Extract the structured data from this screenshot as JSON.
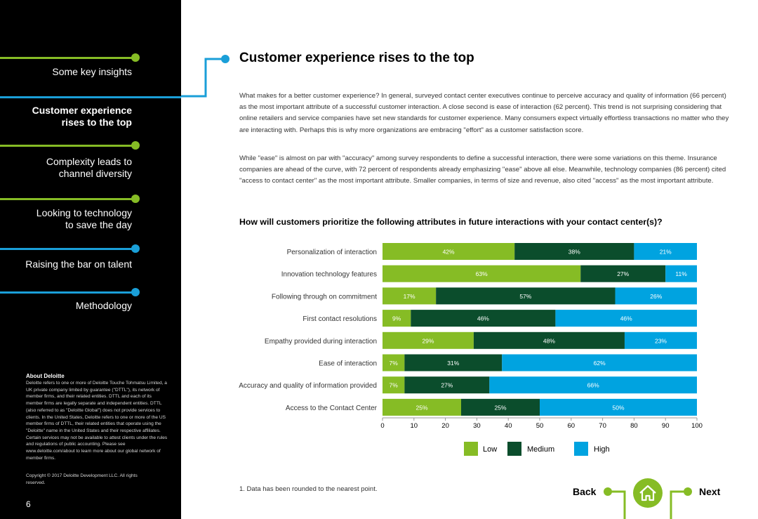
{
  "sidebar": {
    "items": [
      {
        "label": "Some key insights",
        "active": false
      },
      {
        "label": "Customer experience rises to the top",
        "active": true
      },
      {
        "label": "Complexity leads to channel diversity",
        "active": false
      },
      {
        "label": "Looking to technology to save the day",
        "active": false
      },
      {
        "label": "Raising the bar on talent",
        "active": false
      },
      {
        "label": "Methodology",
        "active": false
      }
    ],
    "about_title": "About Deloitte",
    "about_body": "Deloitte refers to one or more of Deloitte Touche Tohmatsu Limited, a UK private company limited by guarantee (\"DTTL\"), its network of member firms, and their related entities. DTTL and each of its member firms are legally separate and independent entities. DTTL (also referred to as \"Deloitte Global\") does not provide services to clients. In the United States, Deloitte refers to one or more of the US member firms of DTTL, their related entities that operate using the \"Deloitte\" name in the United States and their respective affiliates. Certain services may not be available to attest clients under the rules and regulations of public accounting. Please see www.deloitte.com/about to learn more about our global network of member firms.",
    "copyright": "Copyright © 2017 Deloitte Development LLC. All rights reserved.",
    "page_number": "6"
  },
  "main": {
    "title": "Customer experience rises to the top",
    "paragraph1": "What makes for a better customer experience? In general, surveyed contact center executives continue to perceive accuracy and quality of information (66 percent) as the most important attribute of a successful customer interaction. A close second is ease of interaction (62 percent). This trend is not surprising considering that online retailers and service companies have set new standards for customer experience. Many consumers expect virtually effortless transactions no matter who they are interacting with. Perhaps this is why more organizations are embracing \"effort\" as a customer satisfaction score.",
    "paragraph2": "While \"ease\" is almost on par with \"accuracy\" among survey respondents to define a successful interaction, there were some variations on this theme. Insurance companies are ahead of the curve, with 72 percent of respondents already emphasizing \"ease\" above all else. Meanwhile, technology companies (86 percent) cited \"access to contact center\" as the most important attribute. Smaller companies, in terms of size and revenue, also cited \"access\" as the most important attribute.",
    "footnote": "1. Data has been rounded to the nearest point."
  },
  "nav": {
    "back_label": "Back",
    "next_label": "Next",
    "home_icon": "home-icon"
  },
  "colors": {
    "low": "#86bc25",
    "medium": "#0b4d2c",
    "high": "#00a3e0",
    "nav_line_green": "#86bc25",
    "nav_line_blue": "#1a9fd8"
  },
  "chart_data": {
    "type": "bar",
    "orientation": "horizontal",
    "stacked": true,
    "title": "How will customers prioritize the following attributes in future interactions with your contact center(s)?",
    "categories": [
      "Personalization of interaction",
      "Innovation technology features",
      "Following through on commitment",
      "First contact resolutions",
      "Empathy provided during interaction",
      "Ease of interaction",
      "Accuracy and quality of information provided",
      "Access to the Contact Center"
    ],
    "series": [
      {
        "name": "Low",
        "values": [
          42,
          63,
          17,
          9,
          29,
          7,
          7,
          25
        ]
      },
      {
        "name": "Medium",
        "values": [
          38,
          27,
          57,
          46,
          48,
          31,
          27,
          25
        ]
      },
      {
        "name": "High",
        "values": [
          21,
          11,
          26,
          46,
          23,
          62,
          66,
          50
        ]
      }
    ],
    "xlim": [
      0,
      100
    ],
    "xticks": [
      0,
      10,
      20,
      30,
      40,
      50,
      60,
      70,
      80,
      90,
      100
    ],
    "legend_position": "bottom"
  }
}
